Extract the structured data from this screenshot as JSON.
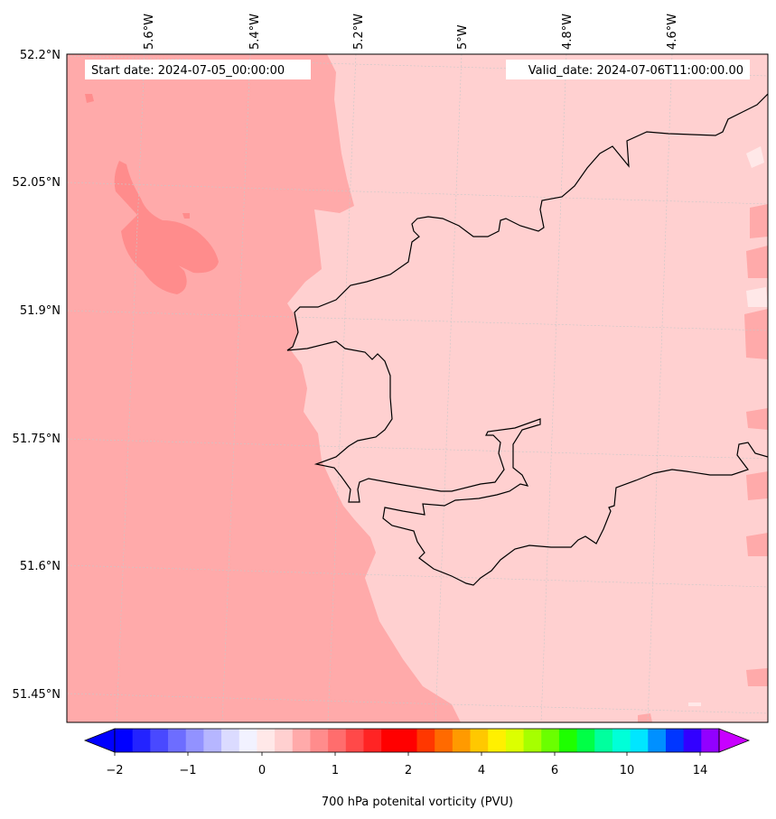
{
  "map": {
    "annotations": {
      "start_date": "Start date: 2024-07-05_00:00:00",
      "valid_date": "Valid_date: 2024-07-06T11:00:00.00"
    },
    "lon_labels": [
      "5.6°W",
      "5.4°W",
      "5.2°W",
      "5°W",
      "4.8°W",
      "4.6°W"
    ],
    "lat_labels": [
      "52.2°N",
      "52.05°N",
      "51.9°N",
      "51.75°N",
      "51.6°N",
      "51.45°N"
    ],
    "field_colors": {
      "sea_pv": "#ffaaaa",
      "land_pv": "#ffd0d0",
      "high_pv_patch": "#ff8c8c",
      "low_pv_patch": "#ffe8e8",
      "coastline": "#000000",
      "gridline": "#cccccc"
    }
  },
  "colorbar": {
    "label": "700 hPa potenital vorticity (PVU)",
    "tick_labels": [
      "−2",
      "−1",
      "0",
      "1",
      "2",
      "4",
      "6",
      "10",
      "14"
    ],
    "extend": "both",
    "colors": [
      "#0000ff",
      "#2323ff",
      "#4949ff",
      "#6d6dff",
      "#9292ff",
      "#b6b6ff",
      "#dbdbff",
      "#f2f2ff",
      "#ffe8e8",
      "#ffd0d0",
      "#ffaaaa",
      "#ff8c8c",
      "#ff6d6d",
      "#ff4949",
      "#ff2424",
      "#ff0000",
      "#ff0000",
      "#ff3700",
      "#ff6a00",
      "#ff9a00",
      "#ffc800",
      "#fff000",
      "#dcff00",
      "#a6ff00",
      "#6aff00",
      "#1eff00",
      "#00ff46",
      "#00ff9e",
      "#00ffd8",
      "#00e6ff",
      "#0090ff",
      "#0036ff",
      "#3200ff",
      "#9200ff"
    ],
    "under_color": "#0000ff",
    "over_color": "#c800ff"
  }
}
